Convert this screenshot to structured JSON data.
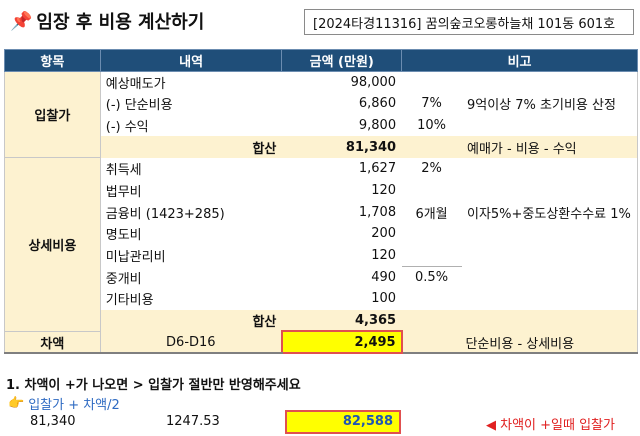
{
  "title": {
    "icon": "pushpin-icon",
    "text": "임장 후 비용 계산하기"
  },
  "case_info": "[2024타경11316] 꿈의숲코오롱하늘채 101동 601호",
  "headers": [
    "항목",
    "내역",
    "금액 (만원)",
    "비고"
  ],
  "bid": {
    "label": "입찰가",
    "rows": [
      {
        "item": "예상매도가",
        "amount": "98,000",
        "pct": "",
        "note": ""
      },
      {
        "item": "(-) 단순비용",
        "amount": "6,860",
        "pct": "7%",
        "note": "9억이상 7% 초기비용 산정"
      },
      {
        "item": "(-) 수익",
        "amount": "9,800",
        "pct": "10%",
        "note": ""
      }
    ],
    "sum_label": "합산",
    "sum_amount": "81,340",
    "sum_note": "예매가 - 비용 - 수익"
  },
  "detail": {
    "label": "상세비용",
    "rows": [
      {
        "item": "취득세",
        "amount": "1,627",
        "pct": "2%",
        "note": ""
      },
      {
        "item": "법무비",
        "amount": "120",
        "pct": "",
        "note": ""
      },
      {
        "item": "금융비 (1423+285)",
        "amount": "1,708",
        "pct": "6개월",
        "note": "이자5%+중도상환수수료 1%"
      },
      {
        "item": "명도비",
        "amount": "200",
        "pct": "",
        "note": ""
      },
      {
        "item": "미납관리비",
        "amount": "120",
        "pct": "",
        "note": ""
      },
      {
        "item": "중개비",
        "amount": "490",
        "pct": "0.5%",
        "note": ""
      },
      {
        "item": "기타비용",
        "amount": "100",
        "pct": "",
        "note": ""
      }
    ],
    "sum_label": "합산",
    "sum_amount": "4,365"
  },
  "diff": {
    "label": "차액",
    "formula": "D6-D16",
    "amount": "2,495",
    "note": "단순비용 - 상세비용"
  },
  "instruction": "1. 차액이 +가 나오면 > 입찰가 절반만 반영해주세요",
  "hint": {
    "icon": "pointing-hand-icon",
    "text": "입찰가 + 차액/2"
  },
  "result": {
    "bid": "81,340",
    "half_diff": "1247.53",
    "final": "82,588",
    "marker_icon": "left-triangle-icon",
    "marker_text": "◀ 차액이 +일때 입찰가"
  }
}
